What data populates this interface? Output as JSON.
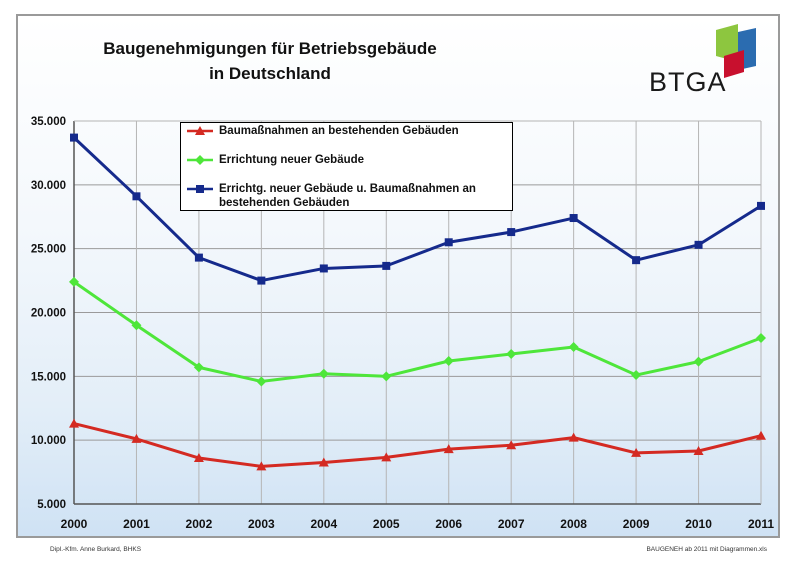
{
  "title_line1": "Baugenehmigungen für Betriebsgebäude",
  "title_line2": "in Deutschland",
  "logo_text": "BTGA",
  "footer_left": "Dipl.-Kfm. Anne Burkard, BHKS",
  "footer_right": "BAUGENEH ab 2011 mit Diagrammen.xls",
  "colors": {
    "series_red": "#d42a22",
    "series_green": "#4ee63a",
    "series_blue": "#152a8c",
    "logo_green": "#8dc63f",
    "logo_blue": "#2b6cb0",
    "logo_red": "#c8102e"
  },
  "chart_data": {
    "type": "line",
    "title": "Baugenehmigungen für Betriebsgebäude in Deutschland",
    "x": [
      "2000",
      "2001",
      "2002",
      "2003",
      "2004",
      "2005",
      "2006",
      "2007",
      "2008",
      "2009",
      "2010",
      "2011"
    ],
    "ylim": [
      5000,
      35000
    ],
    "yticks": [
      5000,
      10000,
      15000,
      20000,
      25000,
      30000,
      35000
    ],
    "ytick_labels": [
      "5.000",
      "10.000",
      "15.000",
      "20.000",
      "25.000",
      "30.000",
      "35.000"
    ],
    "grid": true,
    "legend_position": "top-left",
    "series": [
      {
        "name": "Baumaßnahmen an  bestehenden Gebäuden",
        "marker": "triangle",
        "values": [
          11300,
          10100,
          8600,
          7950,
          8250,
          8650,
          9300,
          9600,
          10200,
          9000,
          9150,
          10350
        ]
      },
      {
        "name": "Errichtung neuer Gebäude",
        "marker": "diamond",
        "values": [
          22400,
          19000,
          15700,
          14600,
          15200,
          15000,
          16200,
          16750,
          17300,
          15100,
          16150,
          18000
        ]
      },
      {
        "name": "Errichtg. neuer Gebäude u. Baumaßnahmen an bestehenden Gebäuden",
        "marker": "square",
        "values": [
          33700,
          29100,
          24300,
          22500,
          23450,
          23650,
          25500,
          26300,
          27400,
          24100,
          25300,
          28350
        ]
      }
    ]
  }
}
